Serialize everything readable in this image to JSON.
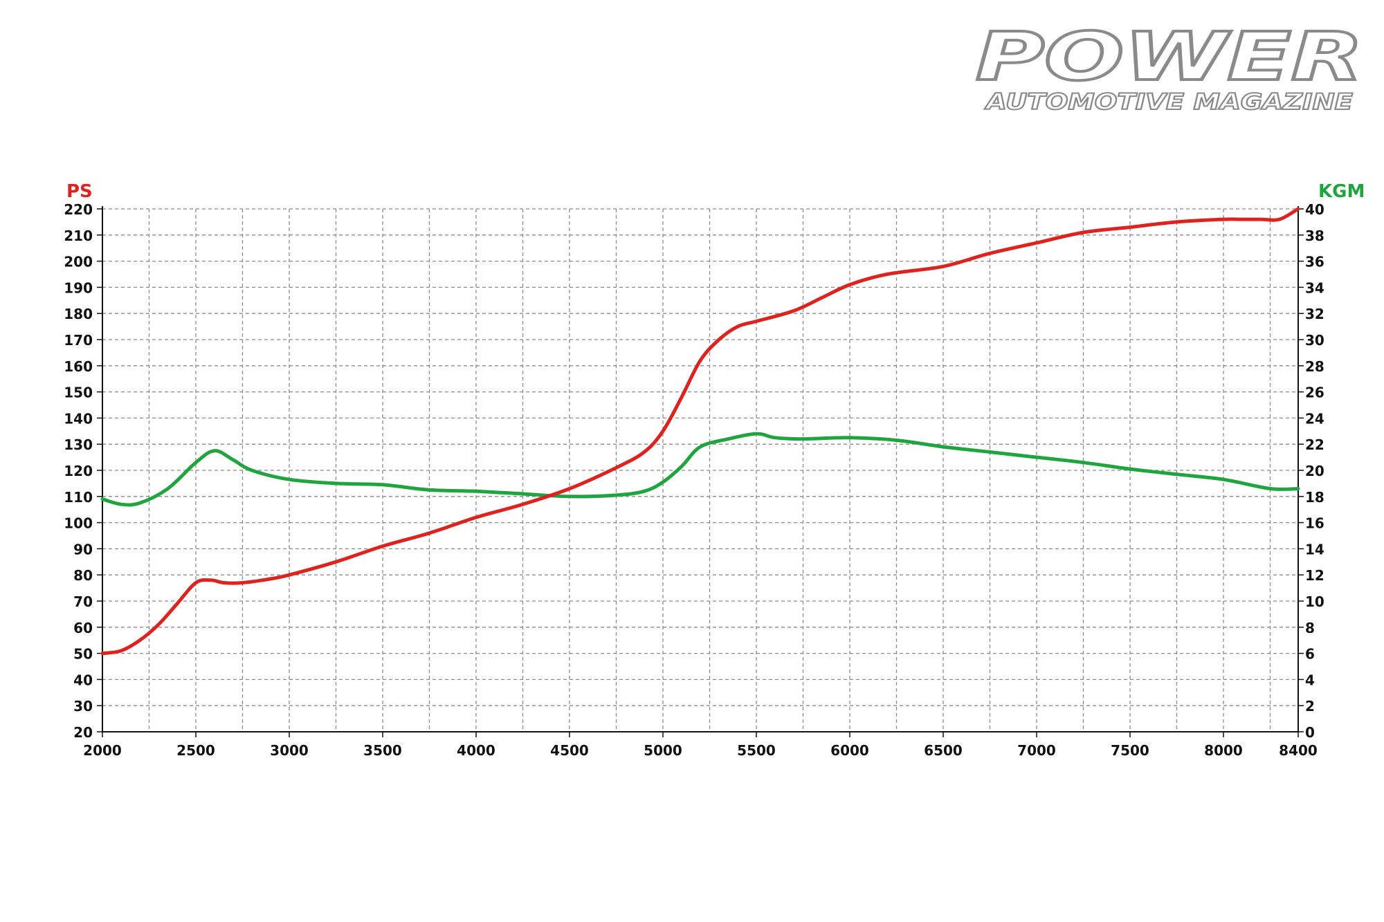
{
  "logo": {
    "main": "POWER",
    "sub": "AUTOMOTIVE MAGAZINE"
  },
  "colors": {
    "power": "#e0221f",
    "torque": "#1fa53e",
    "grid": "#8a8a8a",
    "axis": "#111111"
  },
  "chart_data": {
    "type": "line",
    "title": "",
    "xlabel": "",
    "left_axis": {
      "label": "PS",
      "range": [
        20,
        220
      ],
      "ticks": [
        20,
        30,
        40,
        50,
        60,
        70,
        80,
        90,
        100,
        110,
        120,
        130,
        140,
        150,
        160,
        170,
        180,
        190,
        200,
        210,
        220
      ]
    },
    "right_axis": {
      "label": "KGM",
      "range": [
        0,
        40
      ],
      "ticks": [
        0,
        2,
        4,
        6,
        8,
        10,
        12,
        14,
        16,
        18,
        20,
        22,
        24,
        26,
        28,
        30,
        32,
        34,
        36,
        38,
        40
      ]
    },
    "x_axis": {
      "range": [
        2000,
        8400
      ],
      "ticks": [
        2000,
        2500,
        3000,
        3500,
        4000,
        4500,
        5000,
        5500,
        6000,
        6500,
        7000,
        7500,
        8000,
        8400
      ]
    },
    "grid": true,
    "series": [
      {
        "axis": "left",
        "color": "#e0221f",
        "x": [
          2000,
          2100,
          2200,
          2300,
          2400,
          2500,
          2580,
          2650,
          2750,
          2900,
          3000,
          3250,
          3500,
          3750,
          4000,
          4250,
          4500,
          4750,
          4900,
          5000,
          5100,
          5200,
          5300,
          5400,
          5500,
          5700,
          5850,
          6000,
          6200,
          6500,
          6750,
          7000,
          7250,
          7500,
          7750,
          8000,
          8100,
          8200,
          8300,
          8400
        ],
        "values": [
          50,
          51,
          55,
          61,
          69,
          77,
          78,
          77,
          77,
          78.5,
          80,
          85,
          91,
          96,
          102,
          107,
          113,
          121,
          127,
          135,
          148,
          162,
          170,
          175,
          177,
          181,
          186,
          191,
          195,
          198,
          203,
          207,
          211,
          213,
          215,
          216,
          216,
          216,
          216,
          220
        ]
      },
      {
        "axis": "right",
        "color": "#1fa53e",
        "x": [
          2000,
          2100,
          2200,
          2350,
          2500,
          2600,
          2700,
          2800,
          3000,
          3250,
          3500,
          3750,
          4000,
          4250,
          4500,
          4750,
          4900,
          5000,
          5100,
          5200,
          5350,
          5500,
          5600,
          5750,
          6000,
          6250,
          6500,
          6750,
          7000,
          7250,
          7500,
          7750,
          8000,
          8250,
          8400
        ],
        "values": [
          17.8,
          17.4,
          17.5,
          18.6,
          20.6,
          21.5,
          20.8,
          20.0,
          19.3,
          19.0,
          18.9,
          18.5,
          18.4,
          18.2,
          18.0,
          18.1,
          18.4,
          19.1,
          20.3,
          21.8,
          22.4,
          22.8,
          22.5,
          22.4,
          22.5,
          22.3,
          21.8,
          21.4,
          21.0,
          20.6,
          20.1,
          19.7,
          19.3,
          18.6,
          18.6
        ]
      }
    ]
  }
}
